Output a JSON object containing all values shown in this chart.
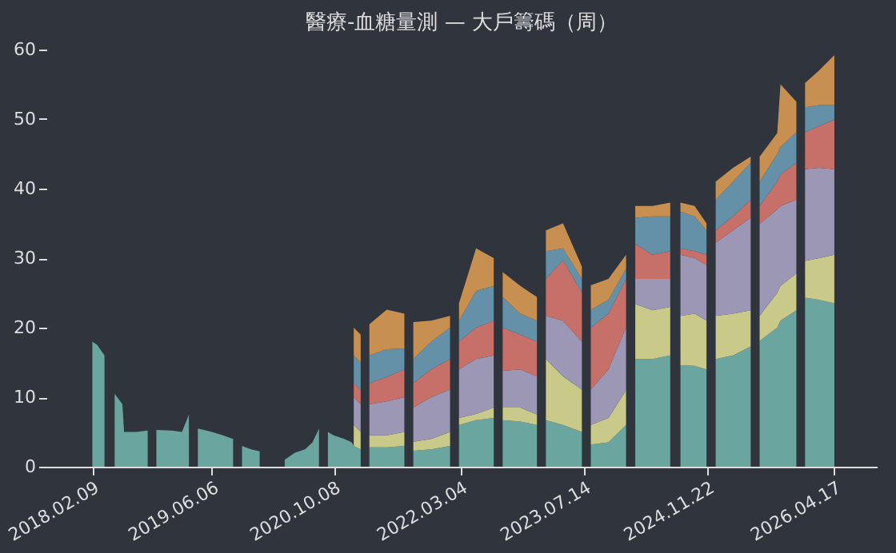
{
  "chart_data": {
    "type": "area",
    "stacked": true,
    "title": "醫療-血糖量測 — 大戶籌碼（周）",
    "x": [
      "2018-02-09",
      "2018-03-01",
      "2018-03-30",
      "2018-04-20",
      "2018-05-10",
      "2018-06-10",
      "2018-06-17",
      "2018-08-05",
      "2018-09-20",
      "2018-10-05",
      "2018-10-25",
      "2018-12-25",
      "2019-02-05",
      "2019-03-05",
      "2019-03-20",
      "2019-04-10",
      "2019-06-06",
      "2019-07-20",
      "2019-08-30",
      "2019-09-15",
      "2019-10-05",
      "2019-11-10",
      "2019-12-15",
      "2020-01-01",
      "2020-03-25",
      "2020-05-05",
      "2020-06-15",
      "2020-07-15",
      "2020-08-10",
      "2020-08-25",
      "2020-09-15",
      "2020-10-08",
      "2020-11-20",
      "2020-12-20",
      "2020-12-28",
      "2021-01-25",
      "2021-02-10",
      "2021-03-01",
      "2021-05-10",
      "2021-07-20",
      "2021-08-05",
      "2021-08-25",
      "2021-11-05",
      "2022-01-20",
      "2022-02-05",
      "2022-02-25",
      "2022-05-05",
      "2022-07-15",
      "2022-07-30",
      "2022-08-20",
      "2022-10-30",
      "2023-01-05",
      "2023-01-20",
      "2023-02-10",
      "2023-04-20",
      "2023-07-05",
      "2023-07-20",
      "2023-08-10",
      "2023-10-20",
      "2023-12-30",
      "2024-01-15",
      "2024-02-05",
      "2024-04-15",
      "2024-06-25",
      "2024-07-10",
      "2024-08-05",
      "2024-10-01",
      "2024-11-18",
      "2024-12-05",
      "2024-12-25",
      "2025-03-05",
      "2025-05-15",
      "2025-06-01",
      "2025-06-20",
      "2025-08-30",
      "2025-09-12",
      "2025-11-15",
      "2025-12-01",
      "2025-12-20",
      "2026-02-15",
      "2026-04-17"
    ],
    "series": [
      {
        "color": "#6aa5a0",
        "values": [
          18,
          17.5,
          16,
          null,
          10.5,
          9,
          5,
          5,
          5.2,
          null,
          5.3,
          5.2,
          5,
          7.5,
          null,
          5.5,
          5,
          4.5,
          4,
          null,
          3,
          2.5,
          2.2,
          null,
          1,
          2,
          2.5,
          3.5,
          5.5,
          null,
          5,
          4.5,
          4,
          3.5,
          3,
          2.5,
          null,
          2.8,
          2.8,
          3,
          null,
          2.3,
          2.5,
          3,
          null,
          6,
          6.7,
          7,
          null,
          6.7,
          6.5,
          6,
          null,
          6.7,
          6,
          5,
          null,
          3.2,
          3.5,
          6,
          null,
          15.5,
          15.5,
          16,
          null,
          14.6,
          14.5,
          14,
          null,
          15.5,
          16,
          17.3,
          null,
          18.1,
          20,
          21,
          22.5,
          null,
          24.3,
          24,
          23.5
        ]
      },
      {
        "color": "#c9c98a",
        "values": [
          null,
          null,
          null,
          null,
          null,
          null,
          null,
          null,
          null,
          null,
          null,
          null,
          null,
          null,
          null,
          null,
          null,
          null,
          null,
          null,
          null,
          null,
          null,
          null,
          null,
          null,
          null,
          null,
          null,
          null,
          null,
          null,
          null,
          null,
          3,
          2.5,
          null,
          1.7,
          1.7,
          2,
          null,
          1.3,
          1.5,
          2,
          null,
          1,
          0.9,
          1.5,
          null,
          1.8,
          2,
          1.5,
          null,
          8.8,
          7,
          6.1,
          null,
          2.8,
          3.5,
          5,
          null,
          7.9,
          7,
          7,
          null,
          7.1,
          7.5,
          7,
          null,
          6.2,
          6,
          5.2,
          null,
          3.6,
          5,
          5,
          5.3,
          null,
          5.3,
          6,
          7
        ]
      },
      {
        "color": "#9b97b5",
        "values": [
          null,
          null,
          null,
          null,
          null,
          null,
          null,
          null,
          null,
          null,
          null,
          null,
          null,
          null,
          null,
          null,
          null,
          null,
          null,
          null,
          null,
          null,
          null,
          null,
          null,
          null,
          null,
          null,
          null,
          null,
          null,
          null,
          null,
          null,
          4,
          4,
          null,
          4.5,
          4.9,
          5,
          null,
          4.9,
          6,
          6.1,
          null,
          7,
          7.9,
          7.5,
          null,
          5.3,
          5.5,
          5.5,
          null,
          6.2,
          8,
          6.9,
          null,
          5.1,
          7,
          9,
          null,
          3.6,
          4.5,
          4,
          null,
          8.8,
          8,
          8,
          null,
          10.5,
          12,
          13.3,
          null,
          13.2,
          12,
          11.5,
          10.6,
          null,
          13.2,
          13,
          12.3
        ]
      },
      {
        "color": "#c7706a",
        "values": [
          null,
          null,
          null,
          null,
          null,
          null,
          null,
          null,
          null,
          null,
          null,
          null,
          null,
          null,
          null,
          null,
          null,
          null,
          null,
          null,
          null,
          null,
          null,
          null,
          null,
          null,
          null,
          null,
          null,
          null,
          null,
          null,
          null,
          null,
          2,
          2,
          null,
          3,
          3.5,
          4,
          null,
          3.5,
          4,
          4.4,
          null,
          4,
          4.5,
          5,
          null,
          6.2,
          5,
          5,
          null,
          5.3,
          8.7,
          7,
          null,
          8.9,
          8,
          7,
          null,
          5,
          3.5,
          4,
          null,
          0.9,
          1,
          1.5,
          null,
          1.8,
          2,
          2.6,
          null,
          2.6,
          4,
          4.5,
          5.3,
          null,
          5.3,
          6,
          7.1
        ]
      },
      {
        "color": "#6490a8",
        "values": [
          null,
          null,
          null,
          null,
          null,
          null,
          null,
          null,
          null,
          null,
          null,
          null,
          null,
          null,
          null,
          null,
          null,
          null,
          null,
          null,
          null,
          null,
          null,
          null,
          null,
          null,
          null,
          null,
          null,
          null,
          null,
          null,
          null,
          null,
          4,
          4,
          null,
          4,
          4,
          3,
          null,
          3.5,
          4,
          4.5,
          null,
          3,
          5.3,
          5,
          null,
          4.4,
          3,
          3,
          null,
          4,
          1.7,
          2,
          null,
          2.6,
          2,
          1.5,
          null,
          3.8,
          5.5,
          5,
          null,
          5.3,
          5,
          3.5,
          null,
          4.4,
          5,
          5.3,
          null,
          3.5,
          4,
          4,
          4.4,
          null,
          3.6,
          3,
          2.1
        ]
      },
      {
        "color": "#c89050",
        "values": [
          null,
          null,
          null,
          null,
          null,
          null,
          null,
          null,
          null,
          null,
          null,
          null,
          null,
          null,
          null,
          null,
          null,
          null,
          null,
          null,
          null,
          null,
          null,
          null,
          null,
          null,
          null,
          null,
          null,
          null,
          null,
          null,
          null,
          null,
          4,
          4,
          null,
          4.5,
          5.7,
          5,
          null,
          5.3,
          3,
          1.7,
          null,
          2.5,
          6.1,
          4,
          null,
          3.6,
          4,
          3.4,
          null,
          3,
          3.6,
          1.8,
          null,
          3.5,
          3,
          2,
          null,
          1.7,
          1.5,
          2,
          null,
          1.3,
          1.5,
          1,
          null,
          2.6,
          2,
          0.9,
          null,
          3.6,
          3,
          9,
          4.4,
          null,
          3.5,
          5,
          7.2
        ]
      }
    ],
    "xlim": [
      "2017-08-08",
      "2026-10-05"
    ],
    "xticks": [
      {
        "value": "2018-02-09",
        "label": "2018.02.09"
      },
      {
        "value": "2019-06-06",
        "label": "2019.06.06"
      },
      {
        "value": "2020-10-08",
        "label": "2020.10.08"
      },
      {
        "value": "2022-03-04",
        "label": "2022.03.04"
      },
      {
        "value": "2023-07-14",
        "label": "2023.07.14"
      },
      {
        "value": "2024-11-22",
        "label": "2024.11.22"
      },
      {
        "value": "2026-04-17",
        "label": "2026.04.17"
      }
    ],
    "ylim": [
      0,
      60
    ],
    "yticks": [
      0,
      10,
      20,
      30,
      40,
      50,
      60
    ],
    "grid": false
  }
}
